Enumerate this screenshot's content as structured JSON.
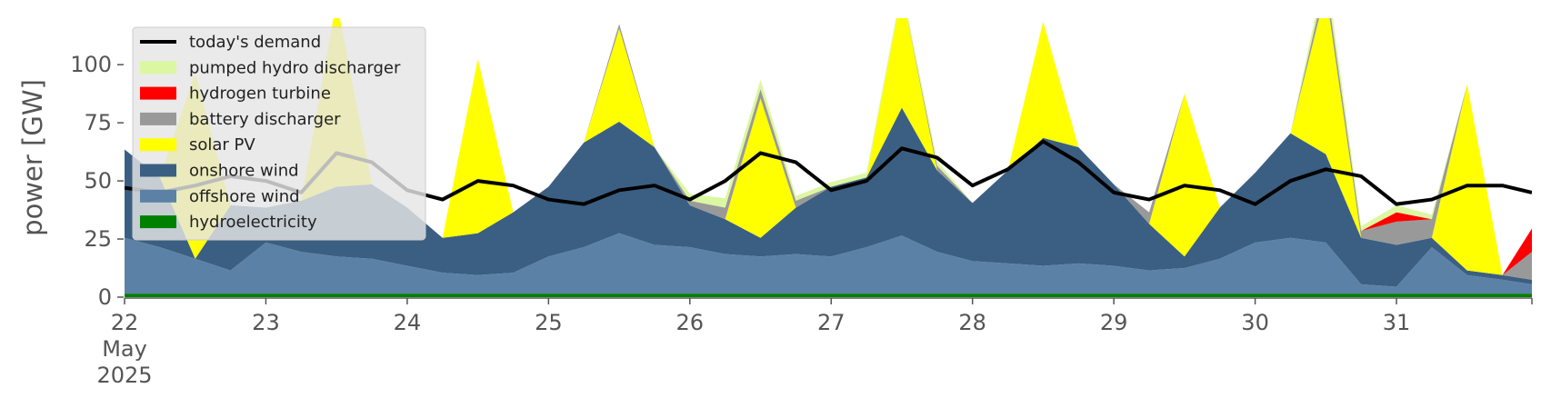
{
  "chart_data": {
    "type": "area",
    "title": "",
    "ylabel": "power [GW]",
    "xlabel": "",
    "ylim": [
      0,
      120
    ],
    "xlim": [
      "2025-05-22",
      "2025-05-31 23:00"
    ],
    "y_ticks": [
      0,
      25,
      50,
      75,
      100
    ],
    "x_ticks": [
      {
        "date": "2025-05-22",
        "label": "22",
        "sub": [
          "May",
          "2025"
        ]
      },
      {
        "date": "2025-05-23",
        "label": "23"
      },
      {
        "date": "2025-05-24",
        "label": "24"
      },
      {
        "date": "2025-05-25",
        "label": "25"
      },
      {
        "date": "2025-05-26",
        "label": "26"
      },
      {
        "date": "2025-05-27",
        "label": "27"
      },
      {
        "date": "2025-05-28",
        "label": "28"
      },
      {
        "date": "2025-05-29",
        "label": "29"
      },
      {
        "date": "2025-05-30",
        "label": "30"
      },
      {
        "date": "2025-05-31",
        "label": "31"
      }
    ],
    "grid": false,
    "legend_position": "top-left",
    "x": [
      "2025-05-22 00:00",
      "2025-05-22 06:00",
      "2025-05-22 12:00",
      "2025-05-22 18:00",
      "2025-05-23 00:00",
      "2025-05-23 06:00",
      "2025-05-23 12:00",
      "2025-05-23 18:00",
      "2025-05-24 00:00",
      "2025-05-24 06:00",
      "2025-05-24 12:00",
      "2025-05-24 18:00",
      "2025-05-25 00:00",
      "2025-05-25 06:00",
      "2025-05-25 12:00",
      "2025-05-25 18:00",
      "2025-05-26 00:00",
      "2025-05-26 06:00",
      "2025-05-26 12:00",
      "2025-05-26 18:00",
      "2025-05-27 00:00",
      "2025-05-27 06:00",
      "2025-05-27 12:00",
      "2025-05-27 18:00",
      "2025-05-28 00:00",
      "2025-05-28 06:00",
      "2025-05-28 12:00",
      "2025-05-28 18:00",
      "2025-05-29 00:00",
      "2025-05-29 06:00",
      "2025-05-29 12:00",
      "2025-05-29 18:00",
      "2025-05-30 00:00",
      "2025-05-30 06:00",
      "2025-05-30 12:00",
      "2025-05-30 18:00",
      "2025-05-31 00:00",
      "2025-05-31 06:00",
      "2025-05-31 12:00",
      "2025-05-31 18:00",
      "2025-05-31 23:00"
    ],
    "series": [
      {
        "name": "hydroelectricity",
        "kind": "area",
        "color": "#008000",
        "values": [
          1.5,
          1.5,
          1.5,
          1.5,
          1.5,
          1.5,
          1.5,
          1.5,
          1.5,
          1.5,
          1.5,
          1.5,
          1.5,
          1.5,
          1.5,
          1.5,
          1.5,
          1.5,
          1.5,
          1.5,
          1.5,
          1.5,
          1.5,
          1.5,
          1.5,
          1.5,
          1.5,
          1.5,
          1.5,
          1.5,
          1.5,
          1.5,
          1.5,
          1.5,
          1.5,
          1.5,
          1.5,
          1.5,
          1.5,
          1.5,
          1.5
        ]
      },
      {
        "name": "offshore wind",
        "kind": "area",
        "color": "#5b82a6",
        "values": [
          24,
          20,
          15,
          10,
          22,
          18,
          16,
          15,
          12,
          9,
          8,
          9,
          16,
          20,
          26,
          21,
          20,
          17,
          16,
          17,
          16,
          20,
          25,
          18,
          14,
          13,
          12,
          13,
          12,
          10,
          11,
          15,
          22,
          24,
          22,
          4,
          3,
          20,
          8,
          6,
          4
        ]
      },
      {
        "name": "onshore wind",
        "kind": "area",
        "color": "#3b5f82",
        "values": [
          38,
          30,
          -10,
          28,
          15,
          22,
          30,
          32,
          25,
          15,
          18,
          26,
          30,
          45,
          48,
          42,
          18,
          15,
          8,
          20,
          30,
          30,
          55,
          35,
          25,
          40,
          55,
          50,
          35,
          20,
          5,
          22,
          30,
          45,
          38,
          20,
          18,
          4,
          2,
          2,
          2
        ]
      },
      {
        "name": "solar PV",
        "kind": "area",
        "color": "#ffff00",
        "values": [
          0,
          0,
          80,
          0,
          0,
          0,
          80,
          0,
          0,
          0,
          75,
          0,
          0,
          0,
          40,
          0,
          0,
          0,
          60,
          0,
          0,
          0,
          50,
          0,
          0,
          0,
          50,
          0,
          0,
          0,
          70,
          0,
          0,
          0,
          70,
          0,
          0,
          0,
          80,
          0,
          0
        ]
      },
      {
        "name": "battery discharger",
        "kind": "area",
        "color": "#999999",
        "values": [
          0,
          0,
          0,
          0,
          0,
          0,
          0,
          0,
          0,
          0,
          0,
          0,
          0,
          0,
          2,
          0,
          2,
          5,
          4,
          3,
          0,
          0,
          0,
          2,
          0,
          0,
          0,
          0,
          0,
          5,
          0,
          0,
          0,
          0,
          5,
          3,
          10,
          8,
          0,
          0,
          12
        ]
      },
      {
        "name": "hydrogen turbine",
        "kind": "area",
        "color": "#ff0000",
        "values": [
          0,
          0,
          0,
          0,
          0,
          0,
          0,
          0,
          0,
          0,
          0,
          0,
          0,
          0,
          0,
          0,
          0,
          0,
          0,
          0,
          0,
          0,
          0,
          0,
          0,
          0,
          0,
          0,
          0,
          0,
          0,
          0,
          0,
          0,
          0,
          0,
          4,
          0,
          0,
          0,
          10
        ]
      },
      {
        "name": "pumped hydro discharger",
        "kind": "area",
        "color": "#dcf7a1",
        "values": [
          0,
          0,
          0,
          0,
          0,
          0,
          0,
          0,
          0,
          0,
          0,
          0,
          0,
          0,
          0,
          0,
          3,
          4,
          4,
          2,
          2,
          2,
          2,
          2,
          0,
          0,
          0,
          0,
          0,
          0,
          0,
          0,
          0,
          0,
          6,
          2,
          3,
          2,
          0,
          0,
          0
        ]
      },
      {
        "name": "today's demand",
        "kind": "line",
        "color": "#000000",
        "values": [
          47,
          45,
          48,
          52,
          50,
          45,
          62,
          58,
          46,
          42,
          50,
          48,
          42,
          40,
          46,
          48,
          42,
          50,
          62,
          58,
          46,
          50,
          64,
          60,
          48,
          55,
          67,
          58,
          45,
          42,
          48,
          46,
          40,
          50,
          55,
          52,
          40,
          42,
          48,
          48,
          45
        ]
      }
    ]
  }
}
